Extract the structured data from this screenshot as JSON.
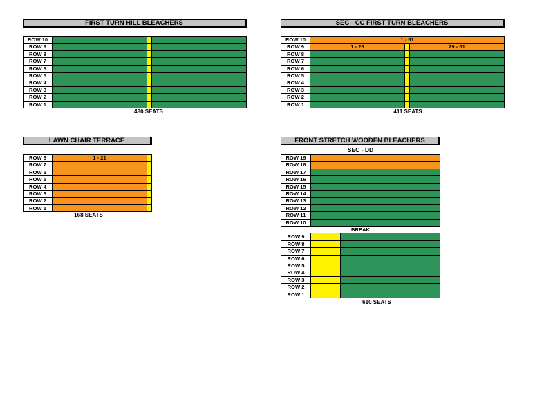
{
  "sections": {
    "first_turn_hill": {
      "title": "FIRST TURN HILL BLEACHERS",
      "rows": [
        "ROW 10",
        "ROW 9",
        "ROW 8",
        "ROW 7",
        "ROW 6",
        "ROW 5",
        "ROW 4",
        "ROW 3",
        "ROW 2",
        "ROW 1"
      ],
      "seats": "480 SEATS"
    },
    "sec_cc": {
      "title": "SEC - CC  FIRST TURN BLEACHERS",
      "rows": [
        "ROW 10",
        "ROW 9",
        "ROW 8",
        "ROW 7",
        "ROW 6",
        "ROW 5",
        "ROW 4",
        "ROW 3",
        "ROW 2",
        "ROW 1"
      ],
      "row10_label": "1 - 51",
      "row9_left": "1 - 26",
      "row9_right": "29 - 51",
      "seats": "411 SEATS"
    },
    "lawn_chair": {
      "title": "LAWN CHAIR TERRACE",
      "rows": [
        "ROW 6",
        "ROW 7",
        "ROW 6",
        "ROW 5",
        "ROW 4",
        "ROW 3",
        "ROW 2",
        "ROW 1"
      ],
      "row_top_label": "1 - 21",
      "seats": "168 SEATS"
    },
    "front_stretch": {
      "title": "FRONT STRETCH WOODEN BLEACHERS",
      "subtitle": "SEC - DD",
      "upper_rows": [
        "ROW 19",
        "ROW 18",
        "ROW 17",
        "ROW 16",
        "ROW 15",
        "ROW 14",
        "ROW 13",
        "ROW 12",
        "ROW 11",
        "ROW 10"
      ],
      "break_label": "BREAK",
      "lower_rows": [
        "ROW 9",
        "ROW 8",
        "ROW 7",
        "ROW 6",
        "ROW 5",
        "ROW 4",
        "ROW 3",
        "ROW 2",
        "ROW 1"
      ],
      "seats": "610 SEATS"
    }
  },
  "colors": {
    "green": "#2e9358",
    "orange": "#f7941d",
    "yellow": "#fff200",
    "gray": "#c4c4c4"
  }
}
